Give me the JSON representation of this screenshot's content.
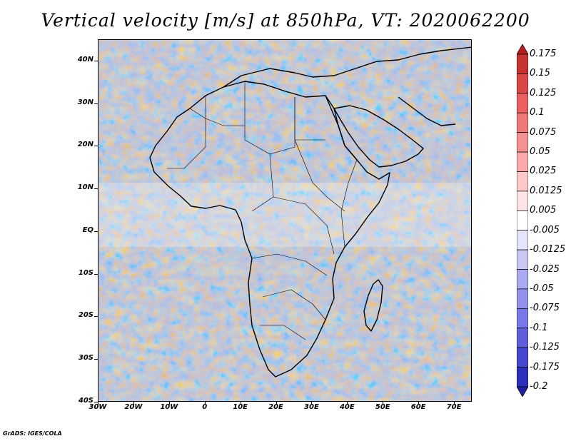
{
  "title": "Vertical velocity [m/s] at 850hPa, VT: 2020062200",
  "footer": "GrADS: IGES/COLA",
  "map": {
    "projection": "lat-lon",
    "lon_range": [
      -30,
      75
    ],
    "lat_range": [
      -40,
      45
    ],
    "field": "vertical velocity at 850hPa",
    "lat_ticks": [
      {
        "value": 40,
        "label": "40N"
      },
      {
        "value": 30,
        "label": "30N"
      },
      {
        "value": 20,
        "label": "20N"
      },
      {
        "value": 10,
        "label": "10N"
      },
      {
        "value": 0,
        "label": "EQ"
      },
      {
        "value": -10,
        "label": "10S"
      },
      {
        "value": -20,
        "label": "20S"
      },
      {
        "value": -30,
        "label": "30S"
      },
      {
        "value": -40,
        "label": "40S"
      }
    ],
    "lon_ticks": [
      {
        "value": -30,
        "label": "30W"
      },
      {
        "value": -20,
        "label": "20W"
      },
      {
        "value": -10,
        "label": "10W"
      },
      {
        "value": 0,
        "label": "0"
      },
      {
        "value": 10,
        "label": "10E"
      },
      {
        "value": 20,
        "label": "20E"
      },
      {
        "value": 30,
        "label": "30E"
      },
      {
        "value": 40,
        "label": "40E"
      },
      {
        "value": 50,
        "label": "50E"
      },
      {
        "value": 60,
        "label": "60E"
      },
      {
        "value": 70,
        "label": "70E"
      }
    ]
  },
  "colorbar": {
    "labels": [
      "0.175",
      "0.15",
      "0.125",
      "0.1",
      "0.075",
      "0.05",
      "0.025",
      "0.0125",
      "0.005",
      "-0.005",
      "-0.0125",
      "-0.025",
      "-0.05",
      "-0.075",
      "-0.1",
      "-0.125",
      "-0.175",
      "-0.2"
    ],
    "colors": [
      "#b41e1e",
      "#c83232",
      "#dc4646",
      "#eb5f5f",
      "#f07878",
      "#f59191",
      "#faaaaa",
      "#fcc8c8",
      "#fde4e4",
      "#ffffff",
      "#e4e4fa",
      "#c8c8f5",
      "#aaaaf0",
      "#9191eb",
      "#7878e6",
      "#5f5fdc",
      "#4646d2",
      "#2d2dbe",
      "#1e1ea0"
    ]
  }
}
